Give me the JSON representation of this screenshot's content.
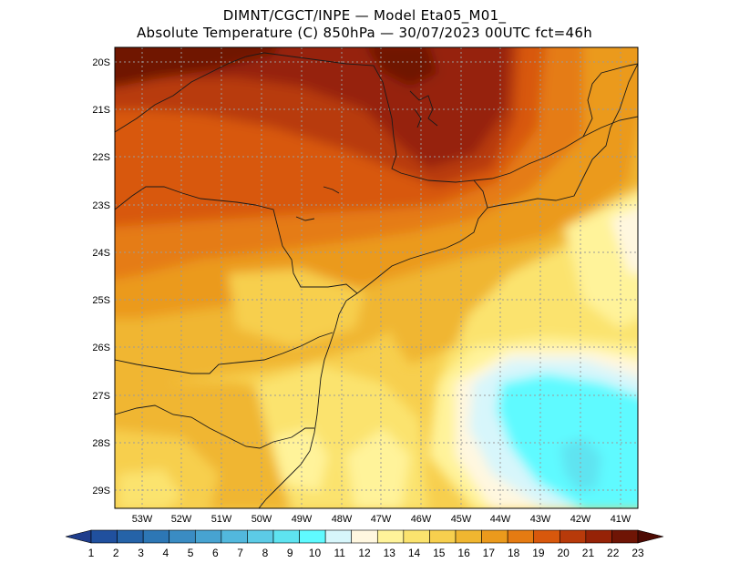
{
  "header": {
    "line1": "DIMNT/CGCT/INPE —  Model Eta05_M01_",
    "line2": "Absolute Temperature (C) 850hPa —  30/07/2023 00UTC fct=46h"
  },
  "map": {
    "lat_labels": [
      "20S",
      "21S",
      "22S",
      "23S",
      "24S",
      "25S",
      "26S",
      "27S",
      "28S",
      "29S"
    ],
    "lon_labels": [
      "53W",
      "52W",
      "51W",
      "50W",
      "49W",
      "48W",
      "47W",
      "46W",
      "45W",
      "44W",
      "43W",
      "42W",
      "41W"
    ]
  },
  "colorbar": {
    "labels": [
      "1",
      "2",
      "3",
      "4",
      "5",
      "6",
      "7",
      "8",
      "9",
      "10",
      "11",
      "12",
      "13",
      "14",
      "15",
      "16",
      "17",
      "18",
      "19",
      "20",
      "21",
      "22",
      "23"
    ],
    "colors": [
      "#1f3d8c",
      "#20509e",
      "#2563a8",
      "#2d77b5",
      "#3a8cc3",
      "#47a3d1",
      "#52b8dd",
      "#5ccbe6",
      "#5ee3f0",
      "#5ffaff",
      "#d7f6fb",
      "#fff7e0",
      "#fff39a",
      "#fbe36e",
      "#f7cf4e",
      "#f0b630",
      "#eb9a1c",
      "#e57b12",
      "#d8580c",
      "#b83a0a",
      "#962307",
      "#6f1505",
      "#4d0a03"
    ]
  }
}
